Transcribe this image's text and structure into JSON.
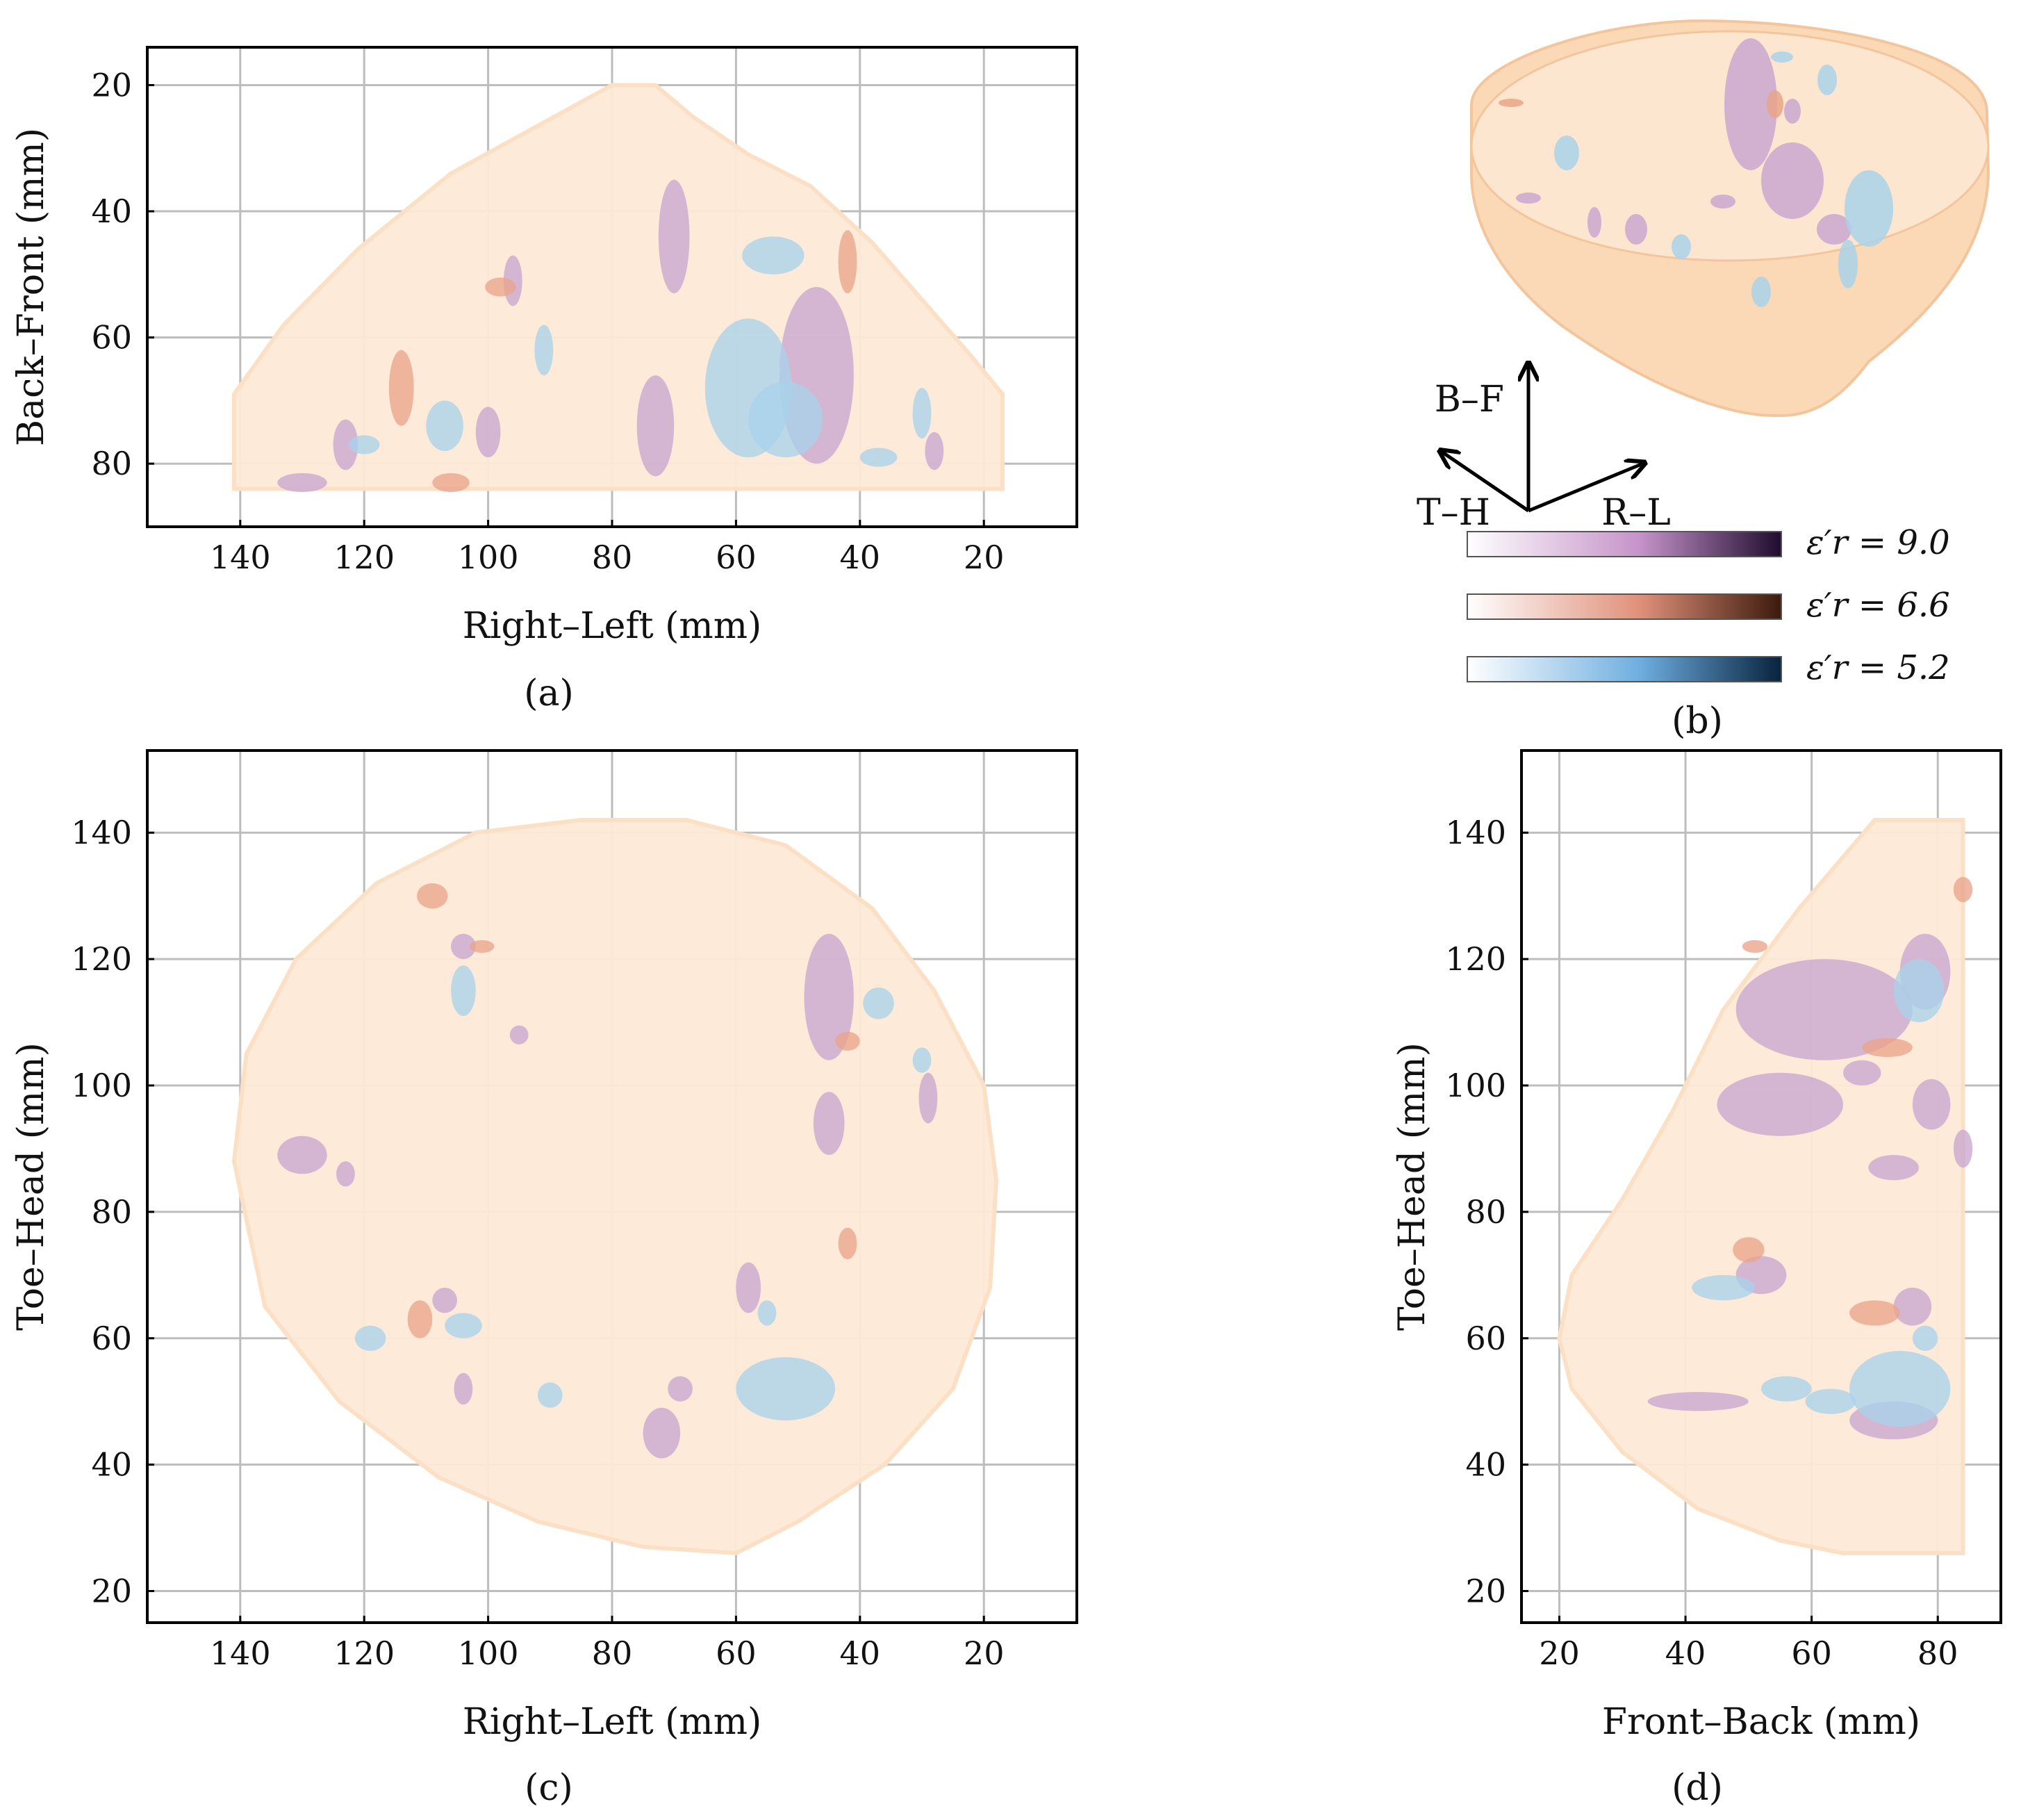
{
  "chart_data": [
    {
      "panel": "a",
      "type": "scatter",
      "caption": "(a)",
      "view": "top view (B-F vs R-L)",
      "xlabel": "Right–Left (mm)",
      "ylabel": "Back–Front (mm)",
      "xlim": [
        155,
        5
      ],
      "ylim": [
        90,
        14
      ],
      "xticks": [
        140,
        120,
        100,
        80,
        60,
        40,
        20
      ],
      "yticks": [
        20,
        40,
        60,
        80
      ],
      "grid": true,
      "outline": [
        [
          141,
          84
        ],
        [
          141,
          69
        ],
        [
          133,
          58
        ],
        [
          121,
          46
        ],
        [
          106,
          34
        ],
        [
          93,
          27
        ],
        [
          80,
          20
        ],
        [
          73,
          20
        ],
        [
          67,
          25
        ],
        [
          58,
          31
        ],
        [
          48,
          36
        ],
        [
          38,
          45
        ],
        [
          30,
          54
        ],
        [
          22,
          63
        ],
        [
          17,
          69
        ],
        [
          17,
          84
        ]
      ],
      "regions": [
        {
          "series": "9.0",
          "x": 70,
          "y": 44,
          "rx": 2.5,
          "ry": 9
        },
        {
          "series": "9.0",
          "x": 47,
          "y": 66,
          "rx": 6,
          "ry": 14
        },
        {
          "series": "9.0",
          "x": 73,
          "y": 74,
          "rx": 3,
          "ry": 8
        },
        {
          "series": "9.0",
          "x": 96,
          "y": 51,
          "rx": 1.5,
          "ry": 4
        },
        {
          "series": "9.0",
          "x": 123,
          "y": 77,
          "rx": 2,
          "ry": 4
        },
        {
          "series": "9.0",
          "x": 100,
          "y": 75,
          "rx": 2,
          "ry": 4
        },
        {
          "series": "9.0",
          "x": 28,
          "y": 78,
          "rx": 1.5,
          "ry": 3
        },
        {
          "series": "9.0",
          "x": 130,
          "y": 83,
          "rx": 4,
          "ry": 1.5
        },
        {
          "series": "5.2",
          "x": 58,
          "y": 68,
          "rx": 7,
          "ry": 11
        },
        {
          "series": "5.2",
          "x": 52,
          "y": 73,
          "rx": 6,
          "ry": 6
        },
        {
          "series": "5.2",
          "x": 54,
          "y": 47,
          "rx": 5,
          "ry": 3
        },
        {
          "series": "5.2",
          "x": 107,
          "y": 74,
          "rx": 3,
          "ry": 4
        },
        {
          "series": "5.2",
          "x": 91,
          "y": 62,
          "rx": 1.5,
          "ry": 4
        },
        {
          "series": "5.2",
          "x": 120,
          "y": 77,
          "rx": 2.5,
          "ry": 1.5
        },
        {
          "series": "5.2",
          "x": 30,
          "y": 72,
          "rx": 1.5,
          "ry": 4
        },
        {
          "series": "5.2",
          "x": 37,
          "y": 79,
          "rx": 3,
          "ry": 1.5
        },
        {
          "series": "6.6",
          "x": 114,
          "y": 68,
          "rx": 2,
          "ry": 6
        },
        {
          "series": "6.6",
          "x": 42,
          "y": 48,
          "rx": 1.5,
          "ry": 5
        },
        {
          "series": "6.6",
          "x": 98,
          "y": 52,
          "rx": 2.5,
          "ry": 1.5
        },
        {
          "series": "6.6",
          "x": 106,
          "y": 83,
          "rx": 3,
          "ry": 1.5
        }
      ]
    },
    {
      "panel": "b",
      "type": "other",
      "caption": "(b)",
      "view": "3D rendering",
      "axes_labels": [
        "B–F",
        "T–H",
        "R–L"
      ],
      "colorbars": [
        {
          "label": "ε′r = 9.0",
          "series": "9.0",
          "from": "#ffffff",
          "mid": "#c593c9",
          "to": "#1f0c2e"
        },
        {
          "label": "ε′r = 6.6",
          "series": "6.6",
          "from": "#ffffff",
          "mid": "#e0907a",
          "to": "#3c1a0c"
        },
        {
          "label": "ε′r = 5.2",
          "series": "5.2",
          "from": "#ffffff",
          "mid": "#6eaee0",
          "to": "#08233e"
        }
      ]
    },
    {
      "panel": "c",
      "type": "scatter",
      "caption": "(c)",
      "view": "side view (T-H vs R-L)",
      "xlabel": "Right–Left (mm)",
      "ylabel": "Toe–Head (mm)",
      "xlim": [
        155,
        5
      ],
      "ylim": [
        15,
        153
      ],
      "xticks": [
        140,
        120,
        100,
        80,
        60,
        40,
        20
      ],
      "yticks": [
        20,
        40,
        60,
        80,
        100,
        120,
        140
      ],
      "grid": true,
      "outline": [
        [
          141,
          88
        ],
        [
          139,
          105
        ],
        [
          131,
          120
        ],
        [
          118,
          132
        ],
        [
          102,
          140
        ],
        [
          85,
          142
        ],
        [
          68,
          142
        ],
        [
          52,
          138
        ],
        [
          38,
          128
        ],
        [
          28,
          115
        ],
        [
          20,
          100
        ],
        [
          18,
          85
        ],
        [
          19,
          68
        ],
        [
          25,
          52
        ],
        [
          36,
          40
        ],
        [
          50,
          31
        ],
        [
          60,
          26
        ],
        [
          75,
          27
        ],
        [
          92,
          31
        ],
        [
          108,
          38
        ],
        [
          124,
          50
        ],
        [
          136,
          65
        ]
      ],
      "regions": [
        {
          "series": "9.0",
          "x": 45,
          "y": 114,
          "rx": 4,
          "ry": 10
        },
        {
          "series": "9.0",
          "x": 130,
          "y": 89,
          "rx": 4,
          "ry": 3
        },
        {
          "series": "9.0",
          "x": 123,
          "y": 86,
          "rx": 1.5,
          "ry": 2
        },
        {
          "series": "9.0",
          "x": 45,
          "y": 94,
          "rx": 2.5,
          "ry": 5
        },
        {
          "series": "9.0",
          "x": 29,
          "y": 98,
          "rx": 1.5,
          "ry": 4
        },
        {
          "series": "9.0",
          "x": 72,
          "y": 45,
          "rx": 3,
          "ry": 4
        },
        {
          "series": "9.0",
          "x": 69,
          "y": 52,
          "rx": 2,
          "ry": 2
        },
        {
          "series": "9.0",
          "x": 104,
          "y": 52,
          "rx": 1.5,
          "ry": 2.5
        },
        {
          "series": "9.0",
          "x": 107,
          "y": 66,
          "rx": 2,
          "ry": 2
        },
        {
          "series": "9.0",
          "x": 95,
          "y": 108,
          "rx": 1.5,
          "ry": 1.5
        },
        {
          "series": "9.0",
          "x": 104,
          "y": 122,
          "rx": 2,
          "ry": 2
        },
        {
          "series": "9.0",
          "x": 58,
          "y": 68,
          "rx": 2,
          "ry": 4
        },
        {
          "series": "5.2",
          "x": 52,
          "y": 52,
          "rx": 8,
          "ry": 5
        },
        {
          "series": "5.2",
          "x": 104,
          "y": 62,
          "rx": 3,
          "ry": 2
        },
        {
          "series": "5.2",
          "x": 119,
          "y": 60,
          "rx": 2.5,
          "ry": 2
        },
        {
          "series": "5.2",
          "x": 104,
          "y": 115,
          "rx": 2,
          "ry": 4
        },
        {
          "series": "5.2",
          "x": 37,
          "y": 113,
          "rx": 2.5,
          "ry": 2.5
        },
        {
          "series": "5.2",
          "x": 30,
          "y": 104,
          "rx": 1.5,
          "ry": 2
        },
        {
          "series": "5.2",
          "x": 90,
          "y": 51,
          "rx": 2,
          "ry": 2
        },
        {
          "series": "5.2",
          "x": 55,
          "y": 64,
          "rx": 1.5,
          "ry": 2
        },
        {
          "series": "6.6",
          "x": 109,
          "y": 130,
          "rx": 2.5,
          "ry": 2
        },
        {
          "series": "6.6",
          "x": 42,
          "y": 107,
          "rx": 2,
          "ry": 1.5
        },
        {
          "series": "6.6",
          "x": 42,
          "y": 75,
          "rx": 1.5,
          "ry": 2.5
        },
        {
          "series": "6.6",
          "x": 111,
          "y": 63,
          "rx": 2,
          "ry": 3
        },
        {
          "series": "6.6",
          "x": 101,
          "y": 122,
          "rx": 2,
          "ry": 1
        }
      ]
    },
    {
      "panel": "d",
      "type": "scatter",
      "caption": "(d)",
      "view": "side view (T-H vs F-B)",
      "xlabel": "Front–Back (mm)",
      "ylabel": "Toe–Head (mm)",
      "xlim": [
        14,
        90
      ],
      "ylim": [
        15,
        153
      ],
      "xticks": [
        20,
        40,
        60,
        80
      ],
      "yticks": [
        20,
        40,
        60,
        80,
        100,
        120,
        140
      ],
      "grid": true,
      "outline": [
        [
          84,
          142
        ],
        [
          70,
          142
        ],
        [
          58,
          128
        ],
        [
          46,
          112
        ],
        [
          38,
          96
        ],
        [
          30,
          82
        ],
        [
          22,
          70
        ],
        [
          20,
          60
        ],
        [
          22,
          52
        ],
        [
          30,
          42
        ],
        [
          42,
          33
        ],
        [
          55,
          28
        ],
        [
          65,
          26
        ],
        [
          84,
          26
        ]
      ],
      "regions": [
        {
          "series": "9.0",
          "x": 62,
          "y": 112,
          "rx": 14,
          "ry": 8
        },
        {
          "series": "9.0",
          "x": 78,
          "y": 118,
          "rx": 4,
          "ry": 6
        },
        {
          "series": "9.0",
          "x": 55,
          "y": 97,
          "rx": 10,
          "ry": 5
        },
        {
          "series": "9.0",
          "x": 79,
          "y": 97,
          "rx": 3,
          "ry": 4
        },
        {
          "series": "9.0",
          "x": 73,
          "y": 87,
          "rx": 4,
          "ry": 2
        },
        {
          "series": "9.0",
          "x": 84,
          "y": 90,
          "rx": 1.5,
          "ry": 3
        },
        {
          "series": "9.0",
          "x": 52,
          "y": 70,
          "rx": 4,
          "ry": 3
        },
        {
          "series": "9.0",
          "x": 76,
          "y": 65,
          "rx": 3,
          "ry": 3
        },
        {
          "series": "9.0",
          "x": 68,
          "y": 102,
          "rx": 3,
          "ry": 2
        },
        {
          "series": "9.0",
          "x": 73,
          "y": 47,
          "rx": 7,
          "ry": 3
        },
        {
          "series": "9.0",
          "x": 42,
          "y": 50,
          "rx": 8,
          "ry": 1.5
        },
        {
          "series": "5.2",
          "x": 74,
          "y": 52,
          "rx": 8,
          "ry": 6
        },
        {
          "series": "5.2",
          "x": 63,
          "y": 50,
          "rx": 4,
          "ry": 2
        },
        {
          "series": "5.2",
          "x": 46,
          "y": 68,
          "rx": 5,
          "ry": 2
        },
        {
          "series": "5.2",
          "x": 77,
          "y": 115,
          "rx": 4,
          "ry": 5
        },
        {
          "series": "5.2",
          "x": 78,
          "y": 60,
          "rx": 2,
          "ry": 2
        },
        {
          "series": "5.2",
          "x": 56,
          "y": 52,
          "rx": 4,
          "ry": 2
        },
        {
          "series": "6.6",
          "x": 50,
          "y": 74,
          "rx": 2.5,
          "ry": 2
        },
        {
          "series": "6.6",
          "x": 70,
          "y": 64,
          "rx": 4,
          "ry": 2
        },
        {
          "series": "6.6",
          "x": 72,
          "y": 106,
          "rx": 4,
          "ry": 1.5
        },
        {
          "series": "6.6",
          "x": 84,
          "y": 131,
          "rx": 1.5,
          "ry": 2
        },
        {
          "series": "6.6",
          "x": 51,
          "y": 122,
          "rx": 2,
          "ry": 1
        }
      ]
    }
  ],
  "colors": {
    "tissue": "#fde9d6",
    "9.0": "#c9a7cf",
    "6.6": "#e9a48a",
    "5.2": "#a9d2ea"
  }
}
